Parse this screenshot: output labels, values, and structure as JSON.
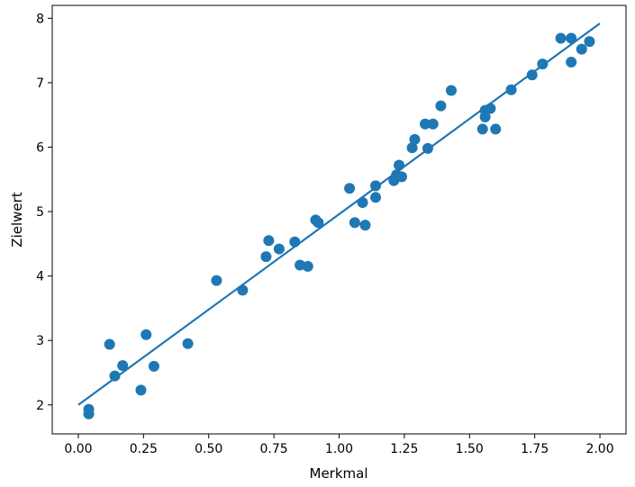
{
  "chart_data": {
    "type": "scatter",
    "title": "",
    "xlabel": "Merkmal",
    "ylabel": "Zielwert",
    "xlim": [
      -0.1,
      2.1
    ],
    "ylim": [
      1.55,
      8.2
    ],
    "xticks": [
      "0.00",
      "0.25",
      "0.50",
      "0.75",
      "1.00",
      "1.25",
      "1.50",
      "1.75",
      "2.00"
    ],
    "yticks": [
      "2",
      "3",
      "4",
      "5",
      "6",
      "7",
      "8"
    ],
    "grid": false,
    "color": "#1f77b4",
    "points": [
      [
        0.04,
        1.93
      ],
      [
        0.04,
        1.86
      ],
      [
        0.12,
        2.94
      ],
      [
        0.14,
        2.45
      ],
      [
        0.17,
        2.61
      ],
      [
        0.24,
        2.23
      ],
      [
        0.26,
        3.09
      ],
      [
        0.29,
        2.6
      ],
      [
        0.42,
        2.95
      ],
      [
        0.53,
        3.93
      ],
      [
        0.63,
        3.78
      ],
      [
        0.72,
        4.3
      ],
      [
        0.73,
        4.55
      ],
      [
        0.77,
        4.42
      ],
      [
        0.83,
        4.53
      ],
      [
        0.85,
        4.17
      ],
      [
        0.88,
        4.15
      ],
      [
        0.91,
        4.87
      ],
      [
        0.92,
        4.83
      ],
      [
        1.04,
        5.36
      ],
      [
        1.06,
        4.83
      ],
      [
        1.09,
        5.14
      ],
      [
        1.1,
        4.79
      ],
      [
        1.14,
        5.4
      ],
      [
        1.14,
        5.22
      ],
      [
        1.21,
        5.48
      ],
      [
        1.22,
        5.57
      ],
      [
        1.23,
        5.72
      ],
      [
        1.24,
        5.54
      ],
      [
        1.28,
        5.99
      ],
      [
        1.29,
        6.12
      ],
      [
        1.33,
        6.36
      ],
      [
        1.34,
        5.98
      ],
      [
        1.36,
        6.36
      ],
      [
        1.39,
        6.64
      ],
      [
        1.43,
        6.88
      ],
      [
        1.55,
        6.28
      ],
      [
        1.56,
        6.47
      ],
      [
        1.56,
        6.57
      ],
      [
        1.58,
        6.6
      ],
      [
        1.6,
        6.28
      ],
      [
        1.66,
        6.89
      ],
      [
        1.74,
        7.12
      ],
      [
        1.78,
        7.29
      ],
      [
        1.85,
        7.69
      ],
      [
        1.89,
        7.69
      ],
      [
        1.89,
        7.32
      ],
      [
        1.93,
        7.52
      ],
      [
        1.96,
        7.64
      ]
    ],
    "fit_line": {
      "x": [
        0.0,
        2.0
      ],
      "y": [
        2.0,
        7.92
      ]
    }
  }
}
